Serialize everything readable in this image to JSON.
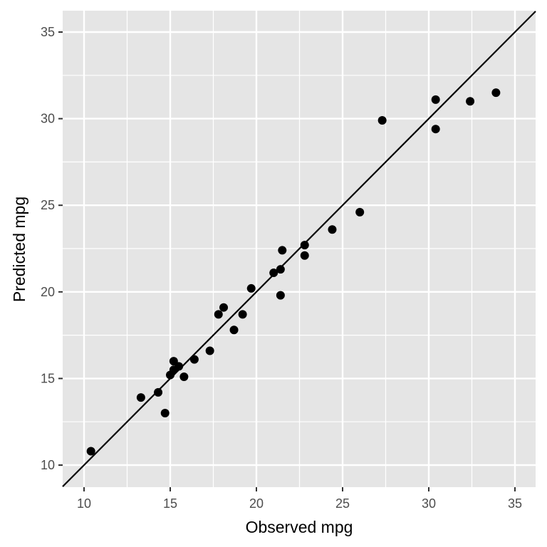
{
  "chart_data": {
    "type": "scatter",
    "title": "",
    "xlabel": "Observed mpg",
    "ylabel": "Predicted mpg",
    "xlim": [
      8.8,
      36.3
    ],
    "ylim": [
      8.8,
      36.4
    ],
    "xticks": [
      10,
      15,
      20,
      25,
      30,
      35
    ],
    "yticks": [
      10,
      15,
      20,
      25,
      30,
      35
    ],
    "grid": true,
    "reference_line": {
      "type": "identity",
      "slope": 1,
      "intercept": 0
    },
    "points": [
      {
        "x": 10.4,
        "y": 10.8
      },
      {
        "x": 13.3,
        "y": 13.9
      },
      {
        "x": 14.3,
        "y": 14.2
      },
      {
        "x": 14.7,
        "y": 13.0
      },
      {
        "x": 15.0,
        "y": 15.2
      },
      {
        "x": 15.2,
        "y": 16.0
      },
      {
        "x": 15.2,
        "y": 15.5
      },
      {
        "x": 15.5,
        "y": 15.7
      },
      {
        "x": 15.8,
        "y": 15.1
      },
      {
        "x": 16.4,
        "y": 16.1
      },
      {
        "x": 17.3,
        "y": 16.6
      },
      {
        "x": 17.8,
        "y": 18.7
      },
      {
        "x": 18.1,
        "y": 19.1
      },
      {
        "x": 18.7,
        "y": 17.8
      },
      {
        "x": 19.2,
        "y": 18.7
      },
      {
        "x": 19.7,
        "y": 20.2
      },
      {
        "x": 21.0,
        "y": 21.1
      },
      {
        "x": 21.4,
        "y": 21.3
      },
      {
        "x": 21.4,
        "y": 19.8
      },
      {
        "x": 21.5,
        "y": 22.4
      },
      {
        "x": 22.8,
        "y": 22.7
      },
      {
        "x": 22.8,
        "y": 22.1
      },
      {
        "x": 24.4,
        "y": 23.6
      },
      {
        "x": 26.0,
        "y": 24.6
      },
      {
        "x": 27.3,
        "y": 29.9
      },
      {
        "x": 30.4,
        "y": 31.1
      },
      {
        "x": 30.4,
        "y": 29.4
      },
      {
        "x": 32.4,
        "y": 31.0
      },
      {
        "x": 33.9,
        "y": 31.5
      }
    ],
    "colors": {
      "panel": "#e5e5e5",
      "grid": "#ffffff",
      "points": "#000000",
      "line": "#000000"
    }
  }
}
